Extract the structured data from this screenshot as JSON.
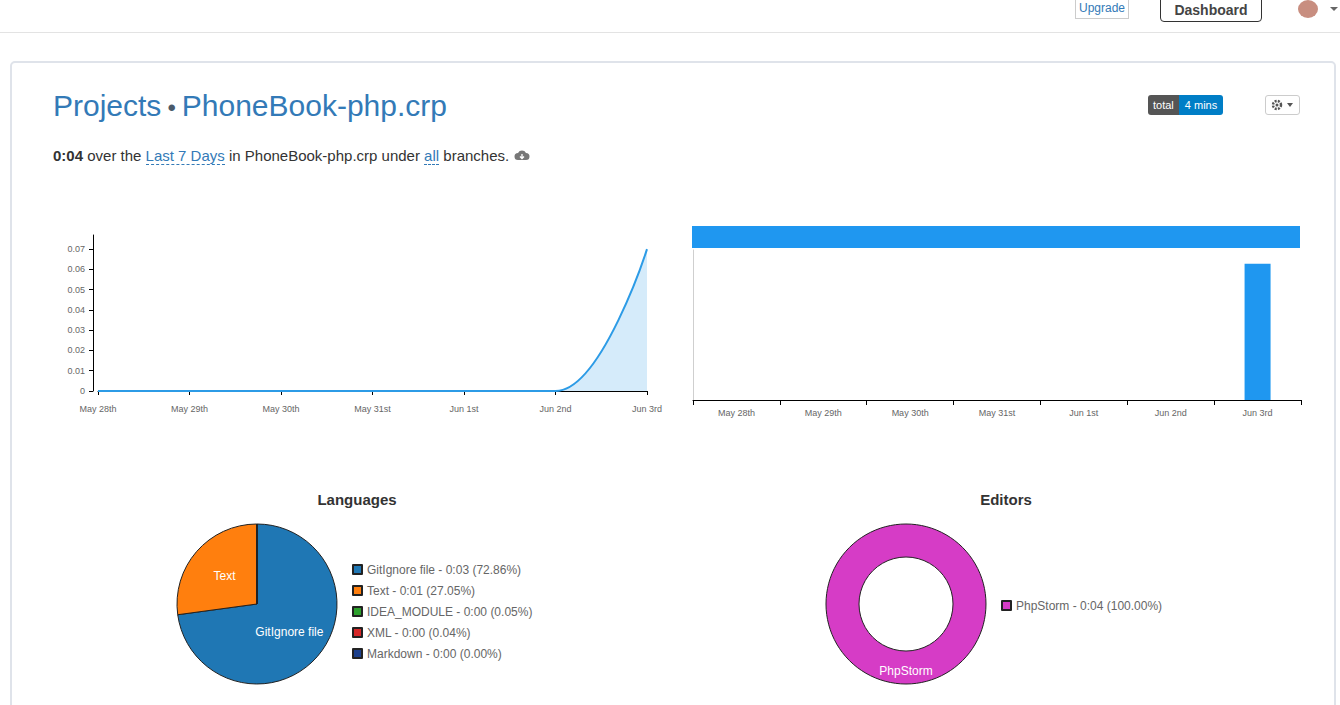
{
  "nav": {
    "upgrade": "Upgrade",
    "dashboard": "Dashboard"
  },
  "header": {
    "title": [
      "Projects",
      "•",
      "PhoneBook-php.crp"
    ],
    "badge": {
      "label": "total",
      "value": "4 mins"
    }
  },
  "summary": [
    {
      "text": "0:04",
      "style": "bold"
    },
    {
      "text": " over the "
    },
    {
      "text": "Last 7 Days",
      "style": "link"
    },
    {
      "text": " in PhoneBook-php.crp under "
    },
    {
      "text": "all",
      "style": "link"
    },
    {
      "text": " branches."
    }
  ],
  "chart_data": [
    {
      "type": "line",
      "categories": [
        "May 28th",
        "May 29th",
        "May 30th",
        "May 31st",
        "Jun 1st",
        "Jun 2nd",
        "Jun 3rd"
      ],
      "values": [
        0,
        0,
        0,
        0,
        0,
        0,
        0.07
      ],
      "color": "#2c9be6",
      "line_style": "smooth",
      "ylim": [
        0,
        0.077
      ],
      "yticks": [
        0,
        0.01,
        0.02,
        0.03,
        0.04,
        0.05,
        0.06,
        0.07
      ]
    },
    {
      "type": "bar",
      "categories": [
        "May 28th",
        "May 29th",
        "May 30th",
        "May 31st",
        "Jun 1st",
        "Jun 2nd",
        "Jun 3rd"
      ],
      "values": [
        0,
        0,
        0,
        0,
        0,
        0,
        0.07
      ],
      "color": "#1f97f0",
      "ylim": [
        0,
        0.077
      ],
      "tick_labels": "x"
    },
    {
      "type": "pie",
      "title": "Languages",
      "categories": [
        "GitIgnore file",
        "Text",
        "IDEA_MODULE",
        "XML",
        "Markdown"
      ],
      "values": [
        72.86,
        27.05,
        0.05,
        0.04,
        0.0
      ],
      "legend_labels": [
        "GitIgnore file - 0:03 (72.86%)",
        "Text - 0:01 (27.05%)",
        "IDEA_MODULE - 0:00 (0.05%)",
        "XML - 0:00 (0.04%)",
        "Markdown - 0:00 (0.00%)"
      ],
      "slice_labels": [
        "GitIgnore file",
        "Text",
        null,
        null,
        null
      ],
      "colors": [
        "#1f77b4",
        "#ff7f0e",
        "#2ca02c",
        "#d62728",
        "#1b3f8b"
      ],
      "legend": "right"
    },
    {
      "type": "donut",
      "title": "Editors",
      "categories": [
        "PhpStorm"
      ],
      "values": [
        100.0
      ],
      "legend_labels": [
        "PhpStorm - 0:04 (100.00%)"
      ],
      "slice_labels": [
        "PhpStorm"
      ],
      "colors": [
        "#d63cc6"
      ],
      "legend": "right"
    }
  ]
}
